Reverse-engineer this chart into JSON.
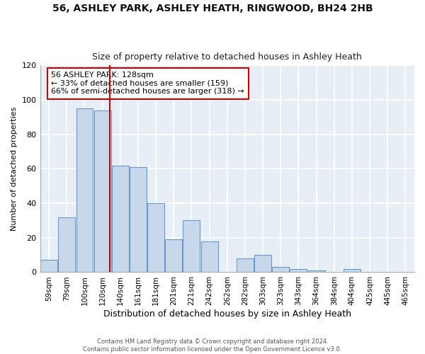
{
  "title": "56, ASHLEY PARK, ASHLEY HEATH, RINGWOOD, BH24 2HB",
  "subtitle": "Size of property relative to detached houses in Ashley Heath",
  "xlabel": "Distribution of detached houses by size in Ashley Heath",
  "ylabel": "Number of detached properties",
  "bin_labels": [
    "59sqm",
    "79sqm",
    "100sqm",
    "120sqm",
    "140sqm",
    "161sqm",
    "181sqm",
    "201sqm",
    "221sqm",
    "242sqm",
    "262sqm",
    "282sqm",
    "303sqm",
    "323sqm",
    "343sqm",
    "364sqm",
    "384sqm",
    "404sqm",
    "425sqm",
    "445sqm",
    "465sqm"
  ],
  "bar_values": [
    7,
    32,
    95,
    94,
    62,
    61,
    40,
    19,
    30,
    18,
    0,
    8,
    10,
    3,
    2,
    1,
    0,
    2,
    0,
    0,
    0
  ],
  "bar_color": "#c8d8eb",
  "bar_edge_color": "#6699cc",
  "vline_x": 3,
  "vline_color": "#cc0000",
  "ylim": [
    0,
    120
  ],
  "yticks": [
    0,
    20,
    40,
    60,
    80,
    100,
    120
  ],
  "annotation_title": "56 ASHLEY PARK: 128sqm",
  "annotation_line1": "← 33% of detached houses are smaller (159)",
  "annotation_line2": "66% of semi-detached houses are larger (318) →",
  "annotation_box_color": "#ffffff",
  "annotation_box_edge": "#cc0000",
  "footer_line1": "Contains HM Land Registry data © Crown copyright and database right 2024.",
  "footer_line2": "Contains public sector information licensed under the Open Government Licence v3.0.",
  "background_color": "#ffffff",
  "plot_background": "#e8eef5",
  "grid_color": "#ffffff",
  "num_bins": 21
}
